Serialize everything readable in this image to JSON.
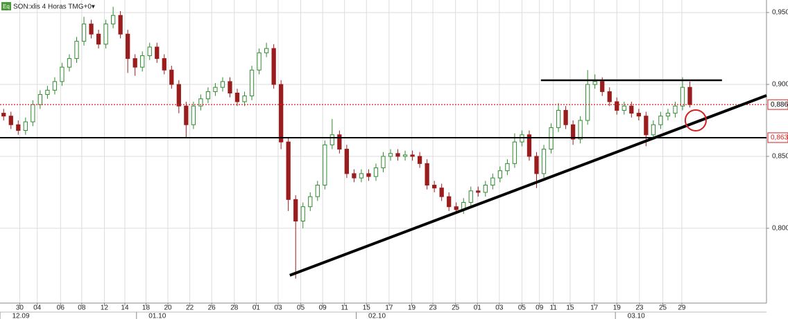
{
  "chart_data": {
    "type": "candlestick",
    "title": "SON:xlis 4 Horas TMG+0▾",
    "icon": "Eq",
    "up_color": "#2e8b2e",
    "down_color": "#9b1c1c",
    "xlim": [
      -0.5,
      104.5
    ],
    "ylim": [
      0.748,
      0.9587
    ],
    "yticks": [
      {
        "value": 0.95,
        "label": "0,950"
      },
      {
        "value": 0.9,
        "label": "0,900"
      },
      {
        "value": 0.85,
        "label": "0,850"
      },
      {
        "value": 0.8,
        "label": "0,800"
      }
    ],
    "xticks": [
      {
        "value": 2.2,
        "label": "30"
      },
      {
        "value": 4.6,
        "label": "04"
      },
      {
        "value": 7.8,
        "label": "06"
      },
      {
        "value": 10.7,
        "label": "08"
      },
      {
        "value": 13.8,
        "label": "12"
      },
      {
        "value": 16.6,
        "label": "14"
      },
      {
        "value": 19.5,
        "label": "18"
      },
      {
        "value": 22.5,
        "label": "20"
      },
      {
        "value": 25.5,
        "label": "22"
      },
      {
        "value": 28.5,
        "label": "26"
      },
      {
        "value": 31.6,
        "label": "28"
      },
      {
        "value": 34.6,
        "label": "01"
      },
      {
        "value": 37.6,
        "label": "03"
      },
      {
        "value": 40.7,
        "label": "05"
      },
      {
        "value": 43.7,
        "label": "09"
      },
      {
        "value": 46.7,
        "label": "11"
      },
      {
        "value": 49.7,
        "label": "15"
      },
      {
        "value": 52.8,
        "label": "17"
      },
      {
        "value": 55.9,
        "label": "19"
      },
      {
        "value": 58.8,
        "label": "23"
      },
      {
        "value": 61.9,
        "label": "25"
      },
      {
        "value": 64.9,
        "label": "01"
      },
      {
        "value": 67.9,
        "label": "03"
      },
      {
        "value": 71,
        "label": "05"
      },
      {
        "value": 73.4,
        "label": "09"
      },
      {
        "value": 75.3,
        "label": "11"
      },
      {
        "value": 77.6,
        "label": "15"
      },
      {
        "value": 80.9,
        "label": "17"
      },
      {
        "value": 84,
        "label": "19"
      },
      {
        "value": 87.1,
        "label": "23"
      },
      {
        "value": 90.3,
        "label": "25"
      },
      {
        "value": 92.9,
        "label": "29"
      }
    ],
    "months": [
      {
        "value": -0.5,
        "label": "12.09"
      },
      {
        "value": 18.2,
        "label": "01.10"
      },
      {
        "value": 48.3,
        "label": "02.10"
      },
      {
        "value": 83.8,
        "label": "03.10"
      }
    ],
    "grid": true,
    "levels": [
      {
        "value": 0.886,
        "label": "0,886",
        "color": "#d42020",
        "style": "dotted",
        "label_color": "#000000"
      },
      {
        "value": 0.863,
        "label": "0,863",
        "color": "#000000",
        "style": "solid",
        "label_color": "#d42020"
      }
    ],
    "resistance": {
      "x": [
        73.6,
        98.4
      ],
      "y": [
        0.9029,
        0.9029
      ],
      "color": "#000000"
    },
    "trendline": {
      "x": [
        39.2,
        104.5
      ],
      "y": [
        0.7673,
        0.8923
      ],
      "color": "#000000"
    },
    "circle": {
      "x": 94.8,
      "y": 0.875,
      "color": "#d42020"
    },
    "candles": [
      [
        0.88,
        0.883,
        0.875,
        0.878
      ],
      [
        0.878,
        0.881,
        0.869,
        0.872
      ],
      [
        0.872,
        0.875,
        0.865,
        0.868
      ],
      [
        0.868,
        0.877,
        0.865,
        0.874
      ],
      [
        0.874,
        0.889,
        0.871,
        0.886
      ],
      [
        0.886,
        0.896,
        0.883,
        0.893
      ],
      [
        0.893,
        0.899,
        0.89,
        0.896
      ],
      [
        0.896,
        0.905,
        0.893,
        0.902
      ],
      [
        0.902,
        0.915,
        0.899,
        0.912
      ],
      [
        0.912,
        0.921,
        0.909,
        0.918
      ],
      [
        0.918,
        0.933,
        0.915,
        0.93
      ],
      [
        0.93,
        0.947,
        0.927,
        0.942
      ],
      [
        0.942,
        0.945,
        0.932,
        0.935
      ],
      [
        0.935,
        0.938,
        0.925,
        0.928
      ],
      [
        0.928,
        0.945,
        0.925,
        0.942
      ],
      [
        0.942,
        0.954,
        0.939,
        0.948
      ],
      [
        0.948,
        0.951,
        0.932,
        0.935
      ],
      [
        0.935,
        0.938,
        0.908,
        0.918
      ],
      [
        0.918,
        0.921,
        0.906,
        0.912
      ],
      [
        0.912,
        0.923,
        0.909,
        0.92
      ],
      [
        0.92,
        0.929,
        0.917,
        0.926
      ],
      [
        0.926,
        0.929,
        0.915,
        0.918
      ],
      [
        0.918,
        0.921,
        0.907,
        0.91
      ],
      [
        0.91,
        0.913,
        0.897,
        0.9
      ],
      [
        0.9,
        0.903,
        0.88,
        0.885
      ],
      [
        0.885,
        0.888,
        0.863,
        0.872
      ],
      [
        0.872,
        0.888,
        0.869,
        0.885
      ],
      [
        0.885,
        0.893,
        0.882,
        0.89
      ],
      [
        0.89,
        0.898,
        0.887,
        0.895
      ],
      [
        0.895,
        0.901,
        0.892,
        0.898
      ],
      [
        0.898,
        0.905,
        0.895,
        0.902
      ],
      [
        0.902,
        0.905,
        0.891,
        0.894
      ],
      [
        0.894,
        0.897,
        0.885,
        0.888
      ],
      [
        0.888,
        0.895,
        0.885,
        0.892
      ],
      [
        0.892,
        0.913,
        0.889,
        0.91
      ],
      [
        0.91,
        0.925,
        0.907,
        0.922
      ],
      [
        0.922,
        0.929,
        0.919,
        0.925
      ],
      [
        0.925,
        0.928,
        0.897,
        0.9
      ],
      [
        0.9,
        0.903,
        0.855,
        0.86
      ],
      [
        0.86,
        0.863,
        0.812,
        0.82
      ],
      [
        0.82,
        0.823,
        0.765,
        0.805
      ],
      [
        0.805,
        0.818,
        0.8,
        0.815
      ],
      [
        0.815,
        0.825,
        0.812,
        0.822
      ],
      [
        0.822,
        0.833,
        0.819,
        0.83
      ],
      [
        0.83,
        0.861,
        0.827,
        0.858
      ],
      [
        0.858,
        0.876,
        0.855,
        0.865
      ],
      [
        0.865,
        0.868,
        0.852,
        0.855
      ],
      [
        0.855,
        0.858,
        0.835,
        0.838
      ],
      [
        0.838,
        0.841,
        0.832,
        0.835
      ],
      [
        0.835,
        0.841,
        0.832,
        0.838
      ],
      [
        0.838,
        0.841,
        0.833,
        0.836
      ],
      [
        0.836,
        0.845,
        0.833,
        0.842
      ],
      [
        0.842,
        0.853,
        0.839,
        0.85
      ],
      [
        0.85,
        0.855,
        0.847,
        0.852
      ],
      [
        0.852,
        0.855,
        0.847,
        0.85
      ],
      [
        0.85,
        0.854,
        0.847,
        0.851
      ],
      [
        0.851,
        0.854,
        0.847,
        0.85
      ],
      [
        0.85,
        0.853,
        0.842,
        0.845
      ],
      [
        0.845,
        0.848,
        0.827,
        0.83
      ],
      [
        0.83,
        0.833,
        0.825,
        0.828
      ],
      [
        0.828,
        0.831,
        0.819,
        0.822
      ],
      [
        0.822,
        0.825,
        0.812,
        0.815
      ],
      [
        0.815,
        0.818,
        0.81,
        0.813
      ],
      [
        0.813,
        0.821,
        0.81,
        0.818
      ],
      [
        0.818,
        0.829,
        0.815,
        0.826
      ],
      [
        0.826,
        0.829,
        0.822,
        0.825
      ],
      [
        0.825,
        0.833,
        0.822,
        0.83
      ],
      [
        0.83,
        0.838,
        0.827,
        0.835
      ],
      [
        0.835,
        0.843,
        0.832,
        0.84
      ],
      [
        0.84,
        0.848,
        0.837,
        0.845
      ],
      [
        0.845,
        0.866,
        0.842,
        0.86
      ],
      [
        0.86,
        0.868,
        0.857,
        0.865
      ],
      [
        0.865,
        0.868,
        0.847,
        0.85
      ],
      [
        0.85,
        0.853,
        0.828,
        0.838
      ],
      [
        0.838,
        0.858,
        0.835,
        0.855
      ],
      [
        0.855,
        0.873,
        0.852,
        0.87
      ],
      [
        0.87,
        0.887,
        0.867,
        0.882
      ],
      [
        0.882,
        0.885,
        0.869,
        0.872
      ],
      [
        0.872,
        0.875,
        0.858,
        0.862
      ],
      [
        0.862,
        0.878,
        0.859,
        0.875
      ],
      [
        0.875,
        0.91,
        0.872,
        0.9
      ],
      [
        0.9,
        0.907,
        0.897,
        0.902
      ],
      [
        0.902,
        0.905,
        0.892,
        0.895
      ],
      [
        0.895,
        0.898,
        0.885,
        0.888
      ],
      [
        0.888,
        0.891,
        0.879,
        0.882
      ],
      [
        0.882,
        0.888,
        0.879,
        0.885
      ],
      [
        0.885,
        0.888,
        0.877,
        0.88
      ],
      [
        0.88,
        0.883,
        0.875,
        0.878
      ],
      [
        0.878,
        0.881,
        0.857,
        0.865
      ],
      [
        0.865,
        0.875,
        0.862,
        0.872
      ],
      [
        0.872,
        0.881,
        0.869,
        0.878
      ],
      [
        0.878,
        0.883,
        0.875,
        0.88
      ],
      [
        0.88,
        0.888,
        0.877,
        0.885
      ],
      [
        0.885,
        0.905,
        0.882,
        0.898
      ],
      [
        0.898,
        0.902,
        0.884,
        0.886
      ]
    ]
  }
}
